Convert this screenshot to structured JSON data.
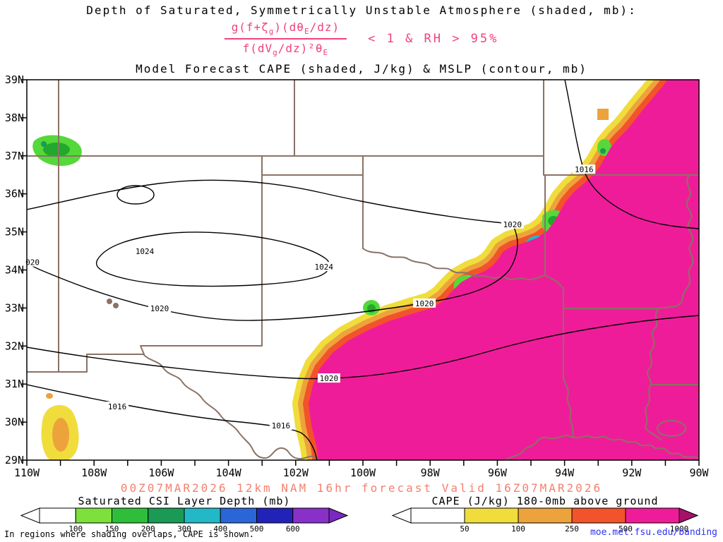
{
  "palette": {
    "formula_pink": "#f1417c",
    "forecast_salmon": "#f4806e",
    "url_blue": "#3030f0",
    "state_border_brown": "#8a7265",
    "contour_black": "#000000",
    "cape_magenta": "#ef1c9a",
    "cape_red": "#f2532a",
    "cape_orange": "#eda33c",
    "cape_yellow": "#f0dd3c",
    "csi_lime": "#55d83a",
    "csi_green": "#22a82c",
    "csi_teal": "#1a9a55",
    "csi_cyan": "#22b8c8",
    "csi_blue": "#2a66d8"
  },
  "titles": {
    "line1": "Depth of Saturated, Symmetrically Unstable Atmosphere (shaded, mb):",
    "line2": "Model Forecast CAPE (shaded, J/kg) & MSLP (contour, mb)"
  },
  "formula": {
    "num_parts": [
      "g(f+ζ",
      "g",
      ")(dθ",
      "E",
      "/dz)"
    ],
    "den_parts": [
      "f(dV",
      "g",
      "/dz)²θ",
      "E"
    ],
    "condition": "< 1 & RH > 95%"
  },
  "footer": {
    "forecast_line": "00Z07MAR2026 12km NAM 16hr forecast Valid 16Z07MAR2026",
    "overlap_note": "In regions where shading overlaps, CAPE is shown.",
    "url": "moe.met.fsu.edu/banding"
  },
  "chart_data": {
    "type": "heatmap",
    "title": "Model Forecast CAPE (shaded, J/kg) & MSLP (contour, mb)",
    "subtitle": "Depth of Saturated, Symmetrically Unstable Atmosphere (shaded, mb)",
    "projection": "lat/lon map, 110W-90W by 29N-39N (south-central United States)",
    "legend_position": "bottom",
    "x_axis": {
      "label": "longitude",
      "ticks": [
        "110W",
        "108W",
        "106W",
        "104W",
        "102W",
        "100W",
        "98W",
        "96W",
        "94W",
        "92W",
        "90W"
      ],
      "minor_tick_every_deg": 1,
      "range_deg_west": [
        110,
        90
      ]
    },
    "y_axis": {
      "label": "latitude",
      "ticks": [
        "39N",
        "38N",
        "37N",
        "36N",
        "35N",
        "34N",
        "33N",
        "32N",
        "31N",
        "30N",
        "29N"
      ],
      "range_deg_north": [
        29,
        39
      ]
    },
    "mslp_contours_mb": {
      "interval": 4,
      "values_labeled": [
        1016,
        1020,
        1024
      ],
      "labels": [
        {
          "text": "020",
          "lon_w": 109.83,
          "lat_n": 34.2
        },
        {
          "text": "1024",
          "lon_w": 106.49,
          "lat_n": 34.49
        },
        {
          "text": "1024",
          "lon_w": 101.16,
          "lat_n": 34.08
        },
        {
          "text": "1020",
          "lon_w": 106.05,
          "lat_n": 32.99
        },
        {
          "text": "1020",
          "lon_w": 98.17,
          "lat_n": 33.12
        },
        {
          "text": "1020",
          "lon_w": 101.01,
          "lat_n": 31.15
        },
        {
          "text": "1020",
          "lon_w": 95.55,
          "lat_n": 35.2
        },
        {
          "text": "1016",
          "lon_w": 107.31,
          "lat_n": 30.41
        },
        {
          "text": "1016",
          "lon_w": 102.44,
          "lat_n": 29.91
        },
        {
          "text": "1016",
          "lon_w": 93.42,
          "lat_n": 36.64
        }
      ]
    },
    "cape_shading": {
      "legend_title": "CAPE (J/kg) 180-0mb above ground",
      "tick_labels": [
        "50",
        "100",
        "250",
        "500",
        "1000"
      ],
      "colors": [
        "#ffffff",
        "#f0dd3c",
        "#eda33c",
        "#f2532a",
        "#ef1c9a"
      ],
      "arrow_left": "#ffffff",
      "arrow_right": "#a8106a"
    },
    "csi_shading": {
      "legend_title": "Saturated CSI Layer Depth (mb)",
      "tick_labels": [
        "100",
        "150",
        "200",
        "300",
        "400",
        "500",
        "600"
      ],
      "colors": [
        "#ffffff",
        "#7de03c",
        "#2ebe3a",
        "#1a9a55",
        "#22b8c8",
        "#2a66d8",
        "#2222b8",
        "#8830c8"
      ],
      "arrow_left": "#ffffff",
      "arrow_right": "#7a28c0"
    },
    "features": [
      "CAPE > 1000 J/kg (magenta) covers the southeast half of the domain: east/south Texas, Louisiana, the Gulf Coast and lower Mississippi Valley",
      "Narrow yellow-orange-red CAPE gradient band along the NW edge of the magenta region, running from ~102W,29N northeastward to ~92.5W,39N",
      "Isolated CAPE 50-250 J/kg patch in far southwest Texas / Mexico near 109W, 29.3-30.5N, and a small patch near 93W,38N",
      "Small saturated-CSI layer-depth patches (green/cyan/blue, ~100-400 mb) near 109.5W,37N, near 100W,33.2N, and along the CAPE boundary between 96.5W,34N and 93W,37.5N",
      "MSLP: 1024 mb ridge over eastern New Mexico / west Texas; 1020 mb contour encircling it; 1016 mb toward the SW corner and over the NE (mid-Mississippi Valley)"
    ]
  }
}
